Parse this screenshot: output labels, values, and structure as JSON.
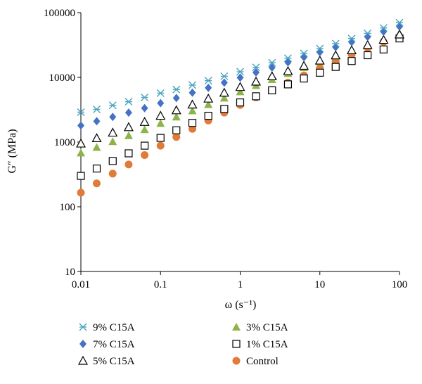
{
  "chart_data": {
    "type": "scatter",
    "title": "",
    "xlabel": "ω (s⁻¹)",
    "ylabel": "G″ (MPa)",
    "xscale": "log",
    "yscale": "log",
    "xlim": [
      0.01,
      100
    ],
    "ylim": [
      10,
      100000
    ],
    "x_ticks": [
      "0.01",
      "0.1",
      "1",
      "10",
      "100"
    ],
    "y_ticks": [
      "10",
      "100",
      "1000",
      "10000",
      "100000"
    ],
    "grid": false,
    "legend_position": "bottom",
    "x": [
      0.01,
      0.0158,
      0.0251,
      0.0398,
      0.0631,
      0.1,
      0.158,
      0.251,
      0.398,
      0.631,
      1,
      1.58,
      2.51,
      3.98,
      6.31,
      10,
      15.8,
      25.1,
      39.8,
      63.1,
      100
    ],
    "series": [
      {
        "name": "9% C15A",
        "marker": "star",
        "color": "#4aa3c0",
        "values": [
          2900,
          3200,
          3700,
          4200,
          4900,
          5700,
          6500,
          7600,
          8900,
          10400,
          12200,
          14300,
          16800,
          19800,
          23500,
          27900,
          33300,
          39900,
          48000,
          58000,
          70000
        ]
      },
      {
        "name": "7% C15A",
        "marker": "diamond",
        "color": "#4472c4",
        "values": [
          1800,
          2100,
          2450,
          2850,
          3350,
          4000,
          4800,
          5800,
          6900,
          8300,
          9900,
          11900,
          14200,
          17100,
          20500,
          24500,
          29300,
          35200,
          42300,
          50800,
          61000
        ]
      },
      {
        "name": "5% C15A",
        "marker": "triangle-open",
        "color": "#000000",
        "values": [
          950,
          1150,
          1400,
          1700,
          2050,
          2550,
          3100,
          3800,
          4700,
          5800,
          7100,
          8600,
          10400,
          12500,
          15100,
          18200,
          21900,
          26300,
          31600,
          38000,
          46000
        ]
      },
      {
        "name": "3% C15A",
        "marker": "triangle",
        "color": "#8db34a",
        "values": [
          680,
          830,
          1020,
          1260,
          1560,
          1950,
          2450,
          3050,
          3800,
          4800,
          6000,
          7500,
          9300,
          11500,
          14200,
          17500,
          21400,
          26200,
          32000,
          39000,
          48000
        ]
      },
      {
        "name": "1% C15A",
        "marker": "square-open",
        "color": "#000000",
        "values": [
          300,
          390,
          510,
          670,
          880,
          1160,
          1520,
          1980,
          2550,
          3250,
          4100,
          5100,
          6300,
          7800,
          9600,
          11800,
          14500,
          17900,
          22000,
          27000,
          40000
        ]
      },
      {
        "name": "Control",
        "marker": "circle",
        "color": "#e07b39",
        "values": [
          165,
          230,
          325,
          450,
          630,
          880,
          1200,
          1600,
          2150,
          2850,
          3750,
          4900,
          6400,
          8300,
          10700,
          13800,
          17700,
          22600,
          28600,
          35500,
          43000
        ]
      }
    ]
  }
}
